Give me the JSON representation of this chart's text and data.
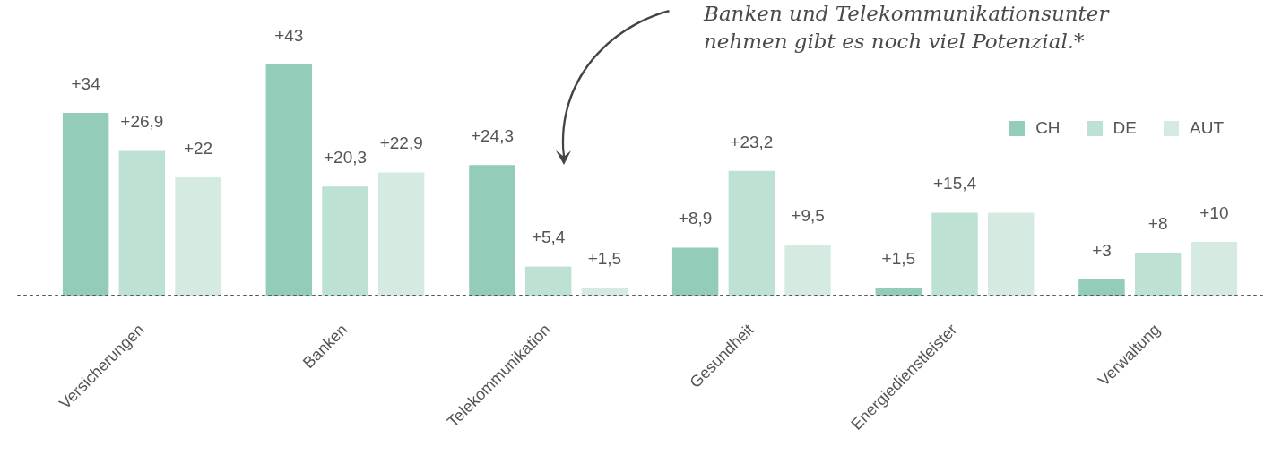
{
  "chart_data": {
    "type": "bar",
    "annotations": [
      "Banken und Telekommunikationsunter\nnehmen gibt es noch viel Potenzial.*"
    ],
    "categories": [
      "Versicherungen",
      "Banken",
      "Telekommunikation",
      "Gesundheit",
      "Energiedienstleister",
      "Verwaltung"
    ],
    "series": [
      {
        "name": "CH",
        "color": "#93ccb8",
        "values": [
          34,
          43,
          24.3,
          8.9,
          1.5,
          3
        ],
        "value_labels": [
          "+34",
          "+43",
          "+24,3",
          "+8,9",
          "+1,5",
          "+3"
        ]
      },
      {
        "name": "DE",
        "color": "#bde1d3",
        "values": [
          26.9,
          20.3,
          5.4,
          23.2,
          15.4,
          8
        ],
        "value_labels": [
          "+26,9",
          "+20,3",
          "+5,4",
          "+23,2",
          "+15,4",
          "+8"
        ]
      },
      {
        "name": "AUT",
        "color": "#d5ebe2",
        "values": [
          22,
          22.9,
          1.5,
          9.5,
          15.4,
          10
        ],
        "value_labels": [
          "+22",
          "+22,9",
          "+1,5",
          "+9,5",
          null,
          "+10"
        ]
      }
    ],
    "legend": "top right",
    "grid": false
  }
}
